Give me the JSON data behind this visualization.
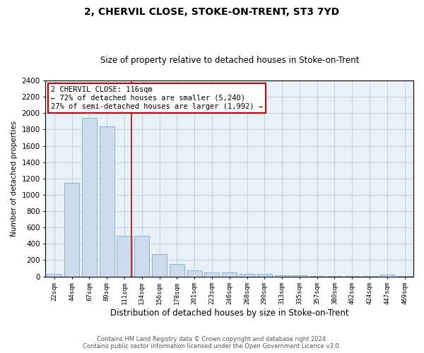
{
  "title": "2, CHERVIL CLOSE, STOKE-ON-TRENT, ST3 7YD",
  "subtitle": "Size of property relative to detached houses in Stoke-on-Trent",
  "xlabel": "Distribution of detached houses by size in Stoke-on-Trent",
  "ylabel": "Number of detached properties",
  "footer_line1": "Contains HM Land Registry data © Crown copyright and database right 2024.",
  "footer_line2": "Contains public sector information licensed under the Open Government Licence v3.0.",
  "categories": [
    "22sqm",
    "44sqm",
    "67sqm",
    "89sqm",
    "111sqm",
    "134sqm",
    "156sqm",
    "178sqm",
    "201sqm",
    "223sqm",
    "246sqm",
    "268sqm",
    "290sqm",
    "313sqm",
    "335sqm",
    "357sqm",
    "380sqm",
    "402sqm",
    "424sqm",
    "447sqm",
    "469sqm"
  ],
  "bar_values": [
    30,
    1150,
    1940,
    1840,
    500,
    500,
    270,
    150,
    70,
    45,
    45,
    35,
    30,
    15,
    10,
    8,
    5,
    3,
    3,
    20,
    2
  ],
  "bar_color": "#ccdcec",
  "bar_edge_color": "#7aaac8",
  "grid_color": "#b8c8dc",
  "background_color": "#e8f0f8",
  "vline_color": "#cc0000",
  "property_label": "2 CHERVIL CLOSE: 116sqm",
  "annotation_line1": "← 72% of detached houses are smaller (5,240)",
  "annotation_line2": "27% of semi-detached houses are larger (1,992) →",
  "annotation_box_color": "white",
  "annotation_box_edge": "#cc0000",
  "ylim": [
    0,
    2400
  ],
  "yticks": [
    0,
    200,
    400,
    600,
    800,
    1000,
    1200,
    1400,
    1600,
    1800,
    2000,
    2200,
    2400
  ],
  "vline_x": 4.42
}
